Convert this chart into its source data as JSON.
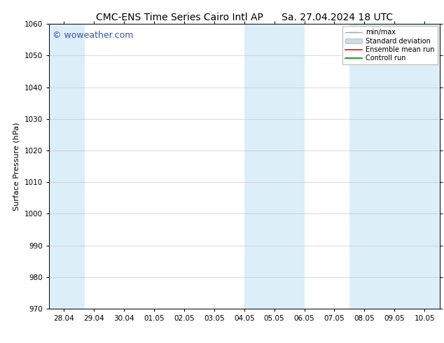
{
  "title": "CMC-ENS Time Series Cairo Intl AP",
  "title2": "Sa. 27.04.2024 18 UTC",
  "ylabel": "Surface Pressure (hPa)",
  "ylim": [
    970,
    1060
  ],
  "yticks": [
    970,
    980,
    990,
    1000,
    1010,
    1020,
    1030,
    1040,
    1050,
    1060
  ],
  "xtick_labels": [
    "28.04",
    "29.04",
    "30.04",
    "01.05",
    "02.05",
    "03.05",
    "04.05",
    "05.05",
    "06.05",
    "07.05",
    "08.05",
    "09.05",
    "10.05"
  ],
  "xtick_positions": [
    0,
    1,
    2,
    3,
    4,
    5,
    6,
    7,
    8,
    9,
    10,
    11,
    12
  ],
  "xlim": [
    -0.5,
    12.5
  ],
  "watermark": "© woweather.com",
  "bg_color": "#ffffff",
  "plot_bg_color": "#ffffff",
  "shaded_bands": [
    {
      "xmin": -0.5,
      "xmax": 0.7,
      "color": "#dceef8"
    },
    {
      "xmin": 6.0,
      "xmax": 8.0,
      "color": "#dceef8"
    },
    {
      "xmin": 9.5,
      "xmax": 12.5,
      "color": "#dceef8"
    }
  ],
  "legend_items": [
    {
      "label": "min/max",
      "color": "#aaaaaa",
      "style": "errorbar"
    },
    {
      "label": "Standard deviation",
      "color": "#ccdde8",
      "style": "box"
    },
    {
      "label": "Ensemble mean run",
      "color": "#ff0000",
      "style": "line"
    },
    {
      "label": "Controll run",
      "color": "#008800",
      "style": "line"
    }
  ],
  "grid_color": "#bbbbbb",
  "tick_color": "#000000",
  "spine_color": "#000000",
  "title_fontsize": 10,
  "axis_label_fontsize": 8,
  "tick_fontsize": 7.5,
  "watermark_color": "#3355bb",
  "watermark_fontsize": 9
}
